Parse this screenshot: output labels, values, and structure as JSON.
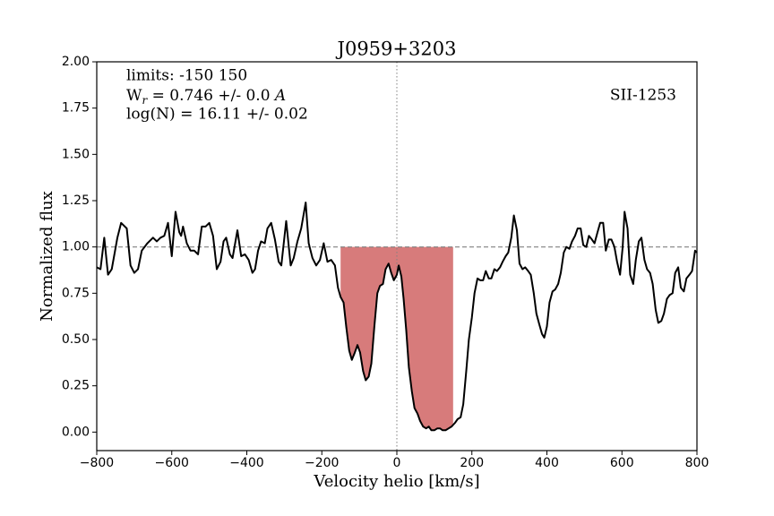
{
  "chart_data": {
    "type": "spectrum",
    "title": "J0959+3203",
    "xlabel": "Velocity helio [km/s]",
    "ylabel": "Normalized flux",
    "annotations": {
      "limits": "limits: -150 150",
      "equivalent_width": {
        "symbol": "W",
        "subscript": "r",
        "text": " = 0.746 +/- 0.0 ",
        "unit": "A"
      },
      "column_density": "log(N) = 16.11 +/- 0.02",
      "line_id": "SII-1253"
    },
    "color": "#000000",
    "fill_color": "#d77b7b",
    "fill_range": [
      -150,
      150
    ],
    "continuum": 1.0,
    "zero_line": 0,
    "xlim": [
      -800,
      800
    ],
    "ylim": [
      -0.1,
      2.0
    ],
    "xticks": [
      {
        "value": -800,
        "label": "−800"
      },
      {
        "value": -600,
        "label": "−600"
      },
      {
        "value": -400,
        "label": "−400"
      },
      {
        "value": -200,
        "label": "−200"
      },
      0,
      200,
      400,
      600,
      800
    ],
    "yticks": [
      {
        "value": 0,
        "label": "0.00"
      },
      {
        "value": 0.25,
        "label": "0.25"
      },
      {
        "value": 0.5,
        "label": "0.50"
      },
      {
        "value": 0.75,
        "label": "0.75"
      },
      {
        "value": 1,
        "label": "1.00"
      },
      {
        "value": 1.25,
        "label": "1.25"
      },
      {
        "value": 1.5,
        "label": "1.50"
      },
      {
        "value": 1.75,
        "label": "1.75"
      },
      {
        "value": 2,
        "label": "2.00"
      }
    ],
    "x": [
      -800,
      -790,
      -780,
      -770,
      -760,
      -745,
      -735,
      -720,
      -710,
      -700,
      -690,
      -680,
      -665,
      -650,
      -640,
      -630,
      -620,
      -610,
      -600,
      -590,
      -580,
      -575,
      -570,
      -560,
      -550,
      -540,
      -530,
      -520,
      -510,
      -500,
      -490,
      -480,
      -470,
      -462,
      -455,
      -445,
      -438,
      -425,
      -415,
      -405,
      -395,
      -385,
      -378,
      -370,
      -362,
      -352,
      -345,
      -335,
      -325,
      -315,
      -308,
      -295,
      -283,
      -275,
      -265,
      -255,
      -243,
      -235,
      -225,
      -215,
      -205,
      -195,
      -185,
      -175,
      -165,
      -157,
      -150,
      -142,
      -135,
      -127,
      -120,
      -112,
      -105,
      -98,
      -90,
      -83,
      -75,
      -68,
      -60,
      -52,
      -45,
      -37,
      -30,
      -22,
      -15,
      -8,
      0,
      5,
      12,
      18,
      25,
      32,
      40,
      47,
      55,
      62,
      70,
      78,
      85,
      92,
      100,
      108,
      115,
      122,
      130,
      138,
      146,
      155,
      162,
      170,
      177,
      185,
      192,
      200,
      207,
      215,
      222,
      230,
      237,
      245,
      252,
      260,
      267,
      275,
      282,
      290,
      297,
      305,
      312,
      320,
      327,
      335,
      342,
      350,
      357,
      365,
      372,
      380,
      387,
      393,
      400,
      407,
      415,
      422,
      430,
      437,
      445,
      452,
      460,
      467,
      475,
      482,
      490,
      497,
      505,
      512,
      520,
      527,
      535,
      542,
      550,
      557,
      565,
      572,
      580,
      587,
      595,
      602,
      607,
      615,
      622,
      630,
      637,
      645,
      652,
      660,
      667,
      675,
      682,
      690,
      697,
      705,
      712,
      720,
      727,
      735,
      742,
      750,
      757,
      765,
      772,
      780,
      787,
      795,
      800
    ],
    "values": [
      0.89,
      0.88,
      1.05,
      0.85,
      0.88,
      1.05,
      1.13,
      1.1,
      0.9,
      0.86,
      0.88,
      0.98,
      1.02,
      1.05,
      1.03,
      1.05,
      1.06,
      1.13,
      0.95,
      1.19,
      1.08,
      1.06,
      1.11,
      1.02,
      0.98,
      0.98,
      0.96,
      1.11,
      1.11,
      1.13,
      1.06,
      0.88,
      0.92,
      1.03,
      1.05,
      0.96,
      0.94,
      1.09,
      0.95,
      0.96,
      0.93,
      0.86,
      0.88,
      0.98,
      1.03,
      1.02,
      1.1,
      1.13,
      1.04,
      0.92,
      0.9,
      1.14,
      0.9,
      0.94,
      1.03,
      1.1,
      1.24,
      1.02,
      0.94,
      0.9,
      0.93,
      1.02,
      0.92,
      0.93,
      0.9,
      0.78,
      0.73,
      0.7,
      0.57,
      0.44,
      0.39,
      0.43,
      0.47,
      0.43,
      0.33,
      0.28,
      0.3,
      0.37,
      0.57,
      0.75,
      0.79,
      0.8,
      0.88,
      0.91,
      0.86,
      0.82,
      0.85,
      0.9,
      0.84,
      0.72,
      0.55,
      0.35,
      0.22,
      0.13,
      0.1,
      0.06,
      0.03,
      0.02,
      0.03,
      0.01,
      0.01,
      0.02,
      0.02,
      0.01,
      0.01,
      0.02,
      0.03,
      0.05,
      0.07,
      0.08,
      0.15,
      0.33,
      0.5,
      0.62,
      0.75,
      0.83,
      0.82,
      0.82,
      0.87,
      0.83,
      0.83,
      0.88,
      0.87,
      0.89,
      0.92,
      0.95,
      0.97,
      1.05,
      1.17,
      1.09,
      0.91,
      0.88,
      0.89,
      0.87,
      0.85,
      0.75,
      0.64,
      0.58,
      0.53,
      0.51,
      0.57,
      0.7,
      0.76,
      0.77,
      0.8,
      0.86,
      0.97,
      1.0,
      0.99,
      1.03,
      1.06,
      1.1,
      1.1,
      1.01,
      1.0,
      1.06,
      1.04,
      1.02,
      1.08,
      1.13,
      1.13,
      0.98,
      1.04,
      1.04,
      1.0,
      0.92,
      0.85,
      1.0,
      1.19,
      1.1,
      0.85,
      0.8,
      0.93,
      1.03,
      1.05,
      0.93,
      0.88,
      0.86,
      0.8,
      0.66,
      0.59,
      0.6,
      0.64,
      0.72,
      0.74,
      0.75,
      0.86,
      0.89,
      0.78,
      0.76,
      0.83,
      0.85,
      0.87,
      0.98,
      0.97
    ]
  }
}
